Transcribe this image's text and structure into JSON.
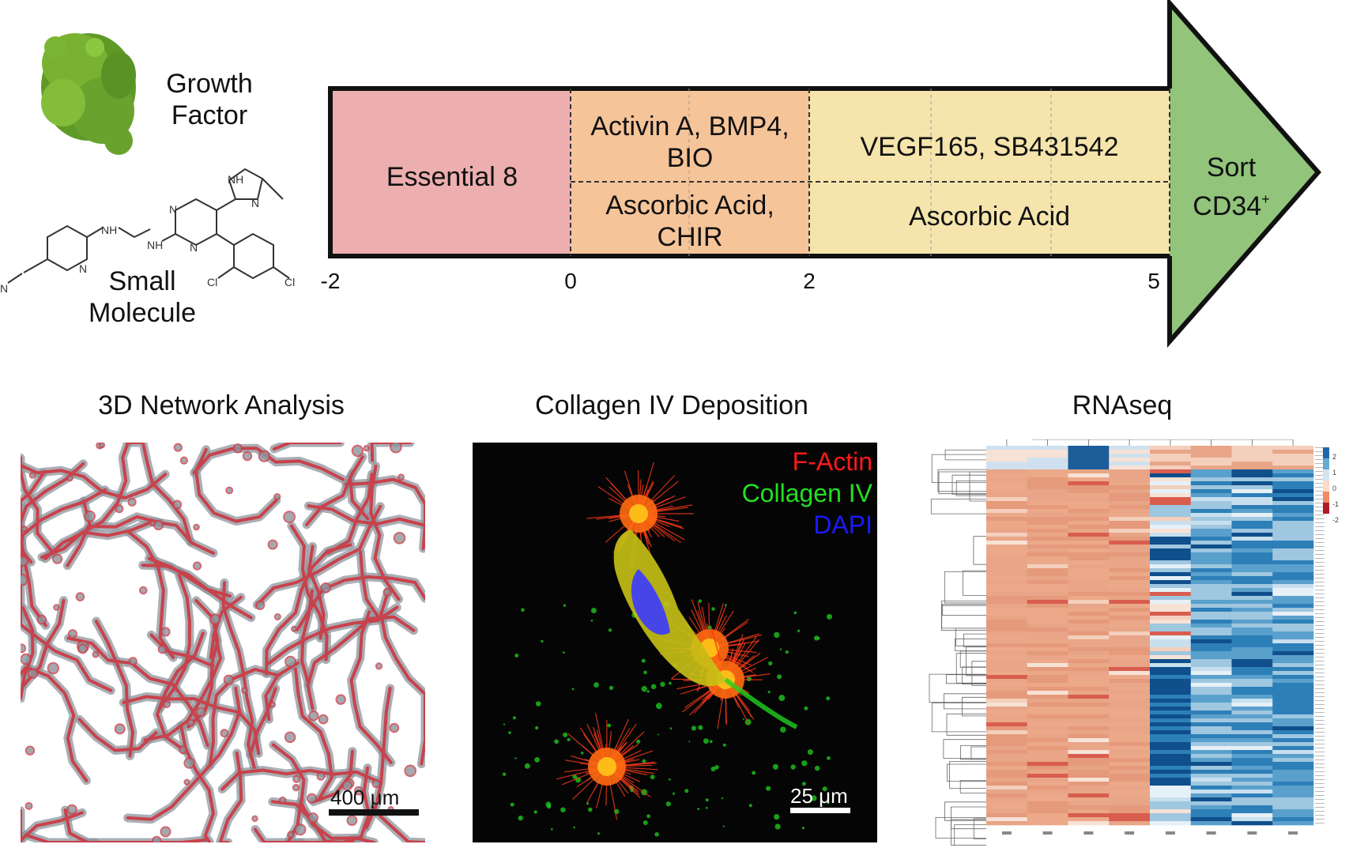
{
  "top": {
    "growth_factor_label": "Growth\nFactor",
    "small_molecule_label": "Small\nMolecule",
    "stages": {
      "essential8": "Essential 8",
      "stage2_top": "Activin A, BMP4,\nBIO",
      "stage2_bottom": "Ascorbic Acid,\nCHIR",
      "stage3_top": "VEGF165, SB431542",
      "stage3_bottom": "Ascorbic Acid"
    },
    "arrow_head": {
      "line1": "Sort",
      "line2": "CD34",
      "sup": "+"
    },
    "ticks": [
      "-2",
      "0",
      "2",
      "5"
    ],
    "colors": {
      "essential8": "#ecaeae",
      "stage2": "#f6c499",
      "stage3": "#f5e5ac",
      "arrowhead": "#92c47c",
      "protein": "#6aa22e"
    }
  },
  "panels": {
    "network": {
      "title": "3D Network Analysis",
      "scale": "400 μm",
      "vessel_color": "#c8424c",
      "halo_color": "#8e949c"
    },
    "collagen": {
      "title": "Collagen IV Deposition",
      "legend": [
        "F-Actin",
        "Collagen IV",
        "DAPI"
      ],
      "legend_colors": [
        "#ff1a1a",
        "#22e022",
        "#1a1aff"
      ],
      "scale": "25 μm"
    },
    "rnaseq": {
      "title": "RNAseq",
      "colorbar_ticks": [
        "2",
        "1",
        "0",
        "-1",
        "-2"
      ]
    }
  }
}
